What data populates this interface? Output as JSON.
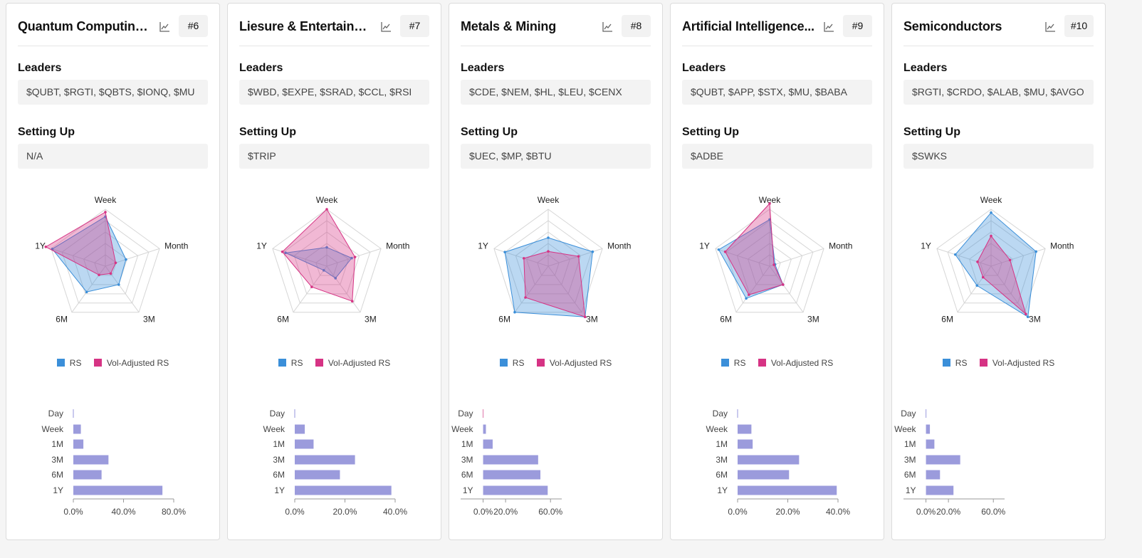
{
  "legend": {
    "rs": "RS",
    "vol_rs": "Vol-Adjusted RS"
  },
  "colors": {
    "rs": "#3b8fd9",
    "vol_rs": "#d63384",
    "bar": "#9b9bdc"
  },
  "section_labels": {
    "leaders": "Leaders",
    "setup": "Setting Up"
  },
  "icons": {
    "chart": "line-chart-icon"
  },
  "cards": [
    {
      "title": "Quantum Computing ...",
      "rank": "#6",
      "leaders": "$QUBT, $RGTI, $QBTS, $IONQ, $MU",
      "setup": "N/A",
      "chart_data": [
        {
          "type": "radar",
          "axes": [
            "Week",
            "Month",
            "3M",
            "6M",
            "1Y"
          ],
          "series": [
            {
              "name": "RS",
              "values": [
                0.87,
                0.38,
                0.4,
                0.56,
                0.98
              ]
            },
            {
              "name": "Vol-Adjusted RS",
              "values": [
                0.95,
                0.19,
                0.16,
                0.19,
                1.1
              ]
            }
          ]
        },
        {
          "type": "bar",
          "categories": [
            "Day",
            "Week",
            "1M",
            "3M",
            "6M",
            "1Y"
          ],
          "values": [
            0.5,
            6,
            8,
            28,
            22.5,
            71
          ],
          "xlim": [
            0,
            80
          ],
          "ticks": [
            "0.0%",
            "40.0%",
            "80.0%"
          ],
          "tick_values": [
            0,
            40,
            80
          ]
        }
      ]
    },
    {
      "title": "Liesure & Entertainm...",
      "rank": "#7",
      "leaders": "$WBD, $EXPE, $SRAD, $CCL, $RSI",
      "setup": "$TRIP",
      "chart_data": [
        {
          "type": "radar",
          "axes": [
            "Week",
            "Month",
            "3M",
            "6M",
            "1Y"
          ],
          "series": [
            {
              "name": "RS",
              "values": [
                0.33,
                0.46,
                0.26,
                0.09,
                0.76
              ]
            },
            {
              "name": "Vol-Adjusted RS",
              "values": [
                1.0,
                0.52,
                0.76,
                0.45,
                0.82
              ]
            }
          ]
        },
        {
          "type": "bar",
          "categories": [
            "Day",
            "Week",
            "1M",
            "3M",
            "6M",
            "1Y"
          ],
          "values": [
            0.2,
            4,
            7.5,
            24,
            18,
            38.5
          ],
          "xlim": [
            0,
            40
          ],
          "ticks": [
            "0.0%",
            "20.0%",
            "40.0%"
          ],
          "tick_values": [
            0,
            20,
            40
          ]
        }
      ]
    },
    {
      "title": "Metals & Mining",
      "rank": "#8",
      "leaders": "$CDE, $NEM, $HL, $LEU, $CENX",
      "setup": "$UEC, $MP, $BTU",
      "chart_data": [
        {
          "type": "radar",
          "axes": [
            "Week",
            "Month",
            "3M",
            "6M",
            "1Y"
          ],
          "series": [
            {
              "name": "RS",
              "values": [
                0.5,
                0.82,
                1.1,
                1.0,
                0.8
              ]
            },
            {
              "name": "Vol-Adjusted RS",
              "values": [
                0.26,
                0.56,
                1.1,
                0.68,
                0.45
              ]
            }
          ]
        },
        {
          "type": "bar",
          "categories": [
            "Day",
            "Week",
            "1M",
            "3M",
            "6M",
            "1Y"
          ],
          "values": [
            -0.3,
            2.5,
            8.5,
            49,
            51,
            57.5
          ],
          "xlim": [
            -20,
            70
          ],
          "ticks": [
            "0.0%",
            "20.0%",
            "60.0%"
          ],
          "tick_values": [
            0,
            20,
            60
          ]
        }
      ]
    },
    {
      "title": "Artificial Intelligence...",
      "rank": "#9",
      "leaders": "$QUBT, $APP, $STX, $MU, $BABA",
      "setup": "$ADBE",
      "chart_data": [
        {
          "type": "radar",
          "axes": [
            "Week",
            "Month",
            "3M",
            "6M",
            "1Y"
          ],
          "series": [
            {
              "name": "RS",
              "values": [
                0.82,
                0.1,
                0.4,
                0.7,
                0.94
              ]
            },
            {
              "name": "Vol-Adjusted RS",
              "values": [
                1.1,
                0.08,
                0.4,
                0.62,
                0.82
              ]
            }
          ]
        },
        {
          "type": "bar",
          "categories": [
            "Day",
            "Week",
            "1M",
            "3M",
            "6M",
            "1Y"
          ],
          "values": [
            0.2,
            5.5,
            6,
            24.5,
            20.5,
            39.5
          ],
          "xlim": [
            0,
            40
          ],
          "ticks": [
            "0.0%",
            "20.0%",
            "40.0%"
          ],
          "tick_values": [
            0,
            20,
            40
          ]
        }
      ]
    },
    {
      "title": "Semiconductors",
      "rank": "#10",
      "leaders": "$RGTI, $CRDO, $ALAB, $MU, $AVGO",
      "setup": "$SWKS",
      "chart_data": [
        {
          "type": "radar",
          "axes": [
            "Week",
            "Month",
            "3M",
            "6M",
            "1Y"
          ],
          "series": [
            {
              "name": "RS",
              "values": [
                0.94,
                0.83,
                1.1,
                0.42,
                0.66
              ]
            },
            {
              "name": "Vol-Adjusted RS",
              "values": [
                0.53,
                0.35,
                1.04,
                0.24,
                0.25
              ]
            }
          ]
        },
        {
          "type": "bar",
          "categories": [
            "Day",
            "Week",
            "1M",
            "3M",
            "6M",
            "1Y"
          ],
          "values": [
            0.2,
            3.5,
            7.5,
            30.5,
            12.5,
            24.5
          ],
          "xlim": [
            -20,
            70
          ],
          "ticks": [
            "0.0%",
            "20.0%",
            "60.0%"
          ],
          "tick_values": [
            0,
            20,
            60
          ]
        }
      ]
    }
  ]
}
